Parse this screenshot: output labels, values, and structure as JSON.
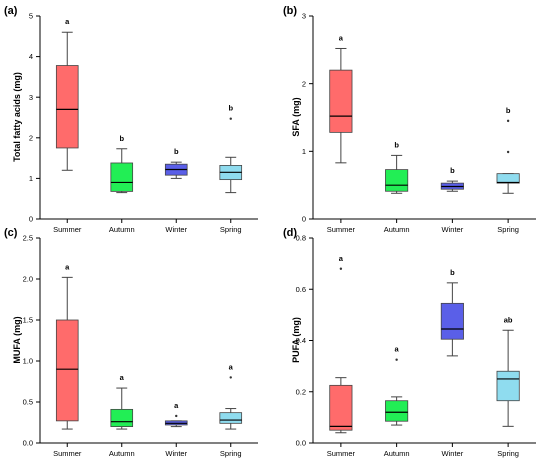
{
  "chart_data": [
    {
      "type": "box",
      "panel_label": "(a)",
      "ylabel": "Total fatty acids (mg)",
      "ylim": [
        0,
        5
      ],
      "yticks": [
        "0",
        "1",
        "2",
        "3",
        "4",
        "5"
      ],
      "categories": [
        "Summer",
        "Autumn",
        "Winter",
        "Spring"
      ],
      "colors": [
        "#ff6b6b",
        "#22ee55",
        "#5a5fe8",
        "#8fdcef"
      ],
      "boxes": [
        {
          "min": 1.2,
          "q1": 1.75,
          "median": 2.7,
          "q3": 3.78,
          "max": 4.6,
          "outliers": [],
          "letter": "a"
        },
        {
          "min": 0.65,
          "q1": 0.68,
          "median": 0.9,
          "q3": 1.38,
          "max": 1.73,
          "outliers": [],
          "letter": "b"
        },
        {
          "min": 1.0,
          "q1": 1.08,
          "median": 1.22,
          "q3": 1.35,
          "max": 1.4,
          "outliers": [],
          "letter": "b"
        },
        {
          "min": 0.65,
          "q1": 0.97,
          "median": 1.15,
          "q3": 1.32,
          "max": 1.52,
          "outliers": [
            2.47
          ],
          "letter": "b"
        }
      ]
    },
    {
      "type": "box",
      "panel_label": "(b)",
      "ylabel": "SFA (mg)",
      "ylim": [
        0,
        3
      ],
      "yticks": [
        "0",
        "1",
        "2",
        "3"
      ],
      "categories": [
        "Summer",
        "Autumn",
        "Winter",
        "Spring"
      ],
      "colors": [
        "#ff6b6b",
        "#22ee55",
        "#5a5fe8",
        "#8fdcef"
      ],
      "boxes": [
        {
          "min": 0.83,
          "q1": 1.28,
          "median": 1.52,
          "q3": 2.2,
          "max": 2.52,
          "outliers": [],
          "letter": "a"
        },
        {
          "min": 0.38,
          "q1": 0.41,
          "median": 0.5,
          "q3": 0.73,
          "max": 0.94,
          "outliers": [],
          "letter": "b"
        },
        {
          "min": 0.41,
          "q1": 0.44,
          "median": 0.48,
          "q3": 0.53,
          "max": 0.56,
          "outliers": [],
          "letter": "b"
        },
        {
          "min": 0.38,
          "q1": 0.53,
          "median": 0.54,
          "q3": 0.67,
          "max": 0.67,
          "outliers": [
            0.99,
            1.45
          ],
          "letter": "b"
        }
      ]
    },
    {
      "type": "box",
      "panel_label": "(c)",
      "ylabel": "MUFA (mg)",
      "ylim": [
        0,
        2.5
      ],
      "yticks": [
        "0.0",
        "0.5",
        "1.0",
        "1.5",
        "2.0",
        "2.5"
      ],
      "categories": [
        "Summer",
        "Autumn",
        "Winter",
        "Spring"
      ],
      "colors": [
        "#ff6b6b",
        "#22ee55",
        "#5a5fe8",
        "#8fdcef"
      ],
      "boxes": [
        {
          "min": 0.17,
          "q1": 0.27,
          "median": 0.9,
          "q3": 1.5,
          "max": 2.02,
          "outliers": [],
          "letter": "a"
        },
        {
          "min": 0.17,
          "q1": 0.2,
          "median": 0.26,
          "q3": 0.41,
          "max": 0.67,
          "outliers": [],
          "letter": "a"
        },
        {
          "min": 0.2,
          "q1": 0.22,
          "median": 0.24,
          "q3": 0.27,
          "max": 0.27,
          "outliers": [
            0.33
          ],
          "letter": "a"
        },
        {
          "min": 0.17,
          "q1": 0.24,
          "median": 0.28,
          "q3": 0.37,
          "max": 0.42,
          "outliers": [
            0.8
          ],
          "letter": "a"
        }
      ]
    },
    {
      "type": "box",
      "panel_label": "(d)",
      "ylabel": "PUFA (mg)",
      "ylim": [
        0,
        0.8
      ],
      "yticks": [
        "0.0",
        "0.2",
        "0.4",
        "0.6",
        "0.8"
      ],
      "categories": [
        "Summer",
        "Autumn",
        "Winter",
        "Spring"
      ],
      "colors": [
        "#ff6b6b",
        "#22ee55",
        "#5a5fe8",
        "#8fdcef"
      ],
      "boxes": [
        {
          "min": 0.04,
          "q1": 0.05,
          "median": 0.065,
          "q3": 0.225,
          "max": 0.255,
          "outliers": [
            0.68
          ],
          "letter": "a"
        },
        {
          "min": 0.07,
          "q1": 0.085,
          "median": 0.12,
          "q3": 0.165,
          "max": 0.18,
          "outliers": [
            0.325
          ],
          "letter": "a"
        },
        {
          "min": 0.34,
          "q1": 0.405,
          "median": 0.445,
          "q3": 0.545,
          "max": 0.625,
          "outliers": [],
          "letter": "b"
        },
        {
          "min": 0.065,
          "q1": 0.165,
          "median": 0.25,
          "q3": 0.28,
          "max": 0.44,
          "outliers": [],
          "letter": "ab"
        }
      ]
    }
  ]
}
